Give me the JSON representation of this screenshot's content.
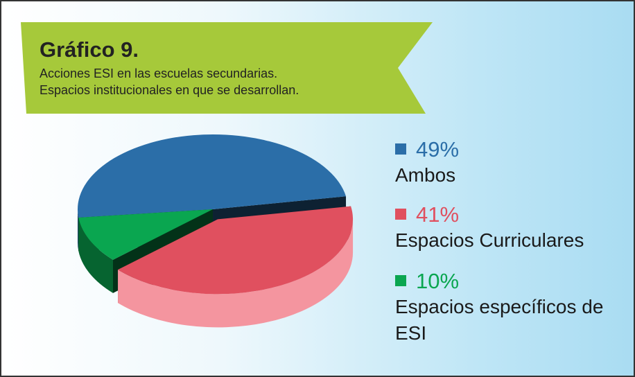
{
  "chart_data": {
    "type": "pie",
    "title": "Gráfico 9.",
    "subtitle": [
      "Acciones ESI en las escuelas secundarias.",
      "Espacios institucionales en que se desarrollan."
    ],
    "categories": [
      "Ambos",
      "Espacios Curriculares",
      "Espacios específicos de ESI"
    ],
    "values": [
      49,
      41,
      10
    ],
    "value_labels": [
      "49%",
      "41%",
      "10%"
    ],
    "colors": [
      "#2b6ea8",
      "#e0505f",
      "#0aa650"
    ]
  }
}
